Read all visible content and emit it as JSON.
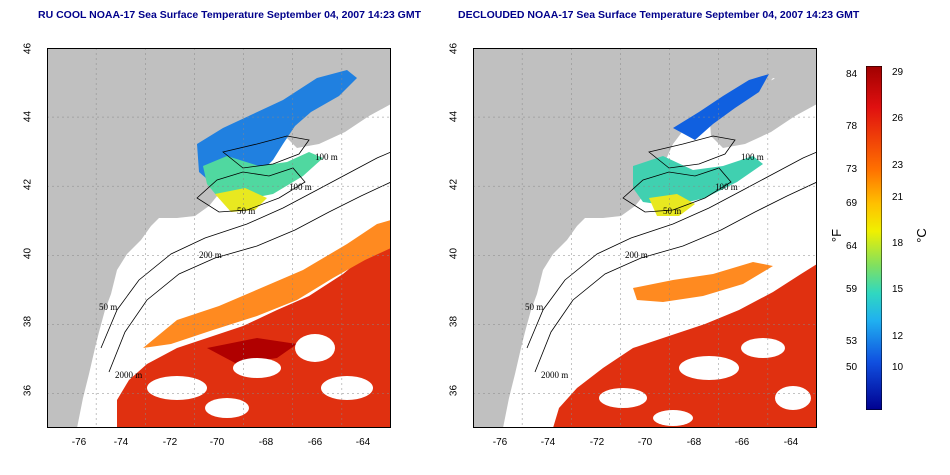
{
  "panels": [
    {
      "title": "RU COOL NOAA-17 Sea Surface Temperature September 04, 2007 14:23 GMT",
      "variant": "raw"
    },
    {
      "title": "DECLOUDED NOAA-17 Sea Surface Temperature September 04, 2007 14:23 GMT",
      "variant": "declouded"
    }
  ],
  "axes": {
    "y_ticks": [
      "46",
      "44",
      "42",
      "40",
      "38",
      "36"
    ],
    "x_ticks": [
      "-76",
      "-74",
      "-72",
      "-70",
      "-68",
      "-66",
      "-64"
    ]
  },
  "contour_labels": [
    "100 m",
    "100 m",
    "50 m",
    "200 m",
    "50 m",
    "2000 m"
  ],
  "colorbar": {
    "fahrenheit_ticks": [
      "84",
      "78",
      "73",
      "69",
      "64",
      "59",
      "53",
      "50"
    ],
    "celsius_ticks": [
      "29",
      "26",
      "23",
      "21",
      "18",
      "15",
      "12",
      "10"
    ],
    "fahrenheit_label": "°F",
    "celsius_label": "°C"
  },
  "colors": {
    "land": "#c0c0c0",
    "title": "#00008b",
    "warm": "#e03010",
    "cool": "#1060e0"
  }
}
